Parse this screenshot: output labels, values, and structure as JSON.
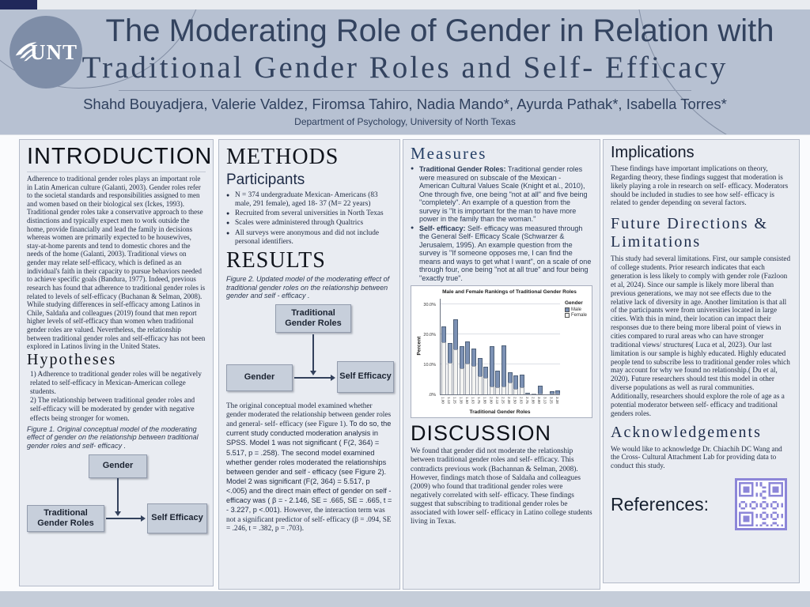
{
  "header": {
    "logo_text": "UNT",
    "title_line1": "The Moderating Role of Gender in Relation with",
    "title_line2": "Traditional Gender Roles and Self- Efficacy",
    "authors": "Shahd Bouyadjera, Valerie Valdez, Firomsa Tahiro, Nadia Mando*, Ayurda Pathak*, Isabella Torres*",
    "affiliation": "Department of Psychology, University of North Texas"
  },
  "introduction": {
    "heading": "INTRODUCTION",
    "body": "Adherence to traditional gender roles plays an important role in Latin American culture (Galanti, 2003). Gender roles refer to the societal standards and responsibilities assigned to men and women based on their biological sex (Ickes, 1993). Traditional gender roles take a conservative approach to these distinctions and typically expect men to work outside the home, provide financially and lead the family in decisions whereas women are primarily expected to be housewives, stay-at-home parents and tend to domestic chores and the needs of the home (Galanti, 2003). Traditional views on gender may relate self-efficacy, which is defined as an individual's faith in their capacity to pursue behaviors needed to achieve specific goals (Bandura, 1977). Indeed, previous research has found that adherence to traditional gender roles is related to levels of self-efficacy (Buchanan & Selman, 2008). While studying differences in self-efficacy among Latinos in Chile, Saldaña and colleagues (2019) found that men report higher levels of self-efficacy than women when traditional gender roles are valued. Nevertheless, the relationship between traditional gender roles and self-efficacy has not been explored in Latinos living in the United States.",
    "hypotheses_heading": "Hypotheses",
    "hypotheses": [
      "1) Adherence to traditional gender roles will be negatively related to self-efficacy in Mexican-American college students.",
      "2) The relationship between traditional gender roles and self-efficacy will be moderated by gender with negative effects being stronger for women."
    ],
    "figure1_caption": "Figure 1. Original conceptual model of the moderating effect of gender on the relationship between traditional gender roles and self- efficacy .",
    "fig1": {
      "top": "Gender",
      "left": "Traditional Gender Roles",
      "right": "Self Efficacy"
    }
  },
  "methods": {
    "heading": "METHODS",
    "participants_heading": "Participants",
    "bullets": [
      "N = 374 undergraduate Mexican- Americans (83 male, 291 female), aged 18- 37 (M= 22 years)",
      "Recruited from several universities in North Texas",
      "Scales were administered through Qualtrics",
      "All surveys were anonymous and did not include personal identifiers."
    ]
  },
  "results": {
    "heading": "RESULTS",
    "figure2_caption": "Figure 2. Updated model of the moderating effect of traditional gender roles on the relationship between gender and self - efficacy .",
    "fig2": {
      "top": "Traditional Gender Roles",
      "left": "Gender",
      "right": "Self Efficacy"
    },
    "p1": "The original conceptual model examined whether gender moderated the relationship between gender roles and general- self- efficacy (see Figure 1). ",
    "p2": "To do so, the current study conducted moderation analysis in SPSS. Model 1 was not significant ( F(2, 364) = 5.517, p = .258). The second model examined whether gender roles moderated the relationships between gender and self - efficacy (see Figure 2). Model 2 was significant (F(2, 364) = 5.517,  p <.005) and the direct main effect of gender on self - efficacy was ( β = - 2.146, SE = .665, SE = .665, t = - 3.227, p <.001). ",
    "p3": "However, the interaction term was not a significant predictor of self- efficacy (β = .094, SE = .246, t = .382, p = .703)."
  },
  "measures": {
    "heading": "Measures",
    "items": [
      {
        "lead": "Traditional Gender Roles:",
        "text": "  Traditional gender roles were measured on subscale of the Mexican - American Cultural Values Scale (Knight et al., 2010),  One through five, one being \"not at all\" and five being \"completely\". An example of a question from the survey is \"It is important for the man to have more power in the family than the woman.\""
      },
      {
        "lead": "Self- efficacy:",
        "text": "  Self- efficacy was measured through the General Self- Efficacy Scale (Schwarzer & Jerusalem, 1995). An example question from the survey is \"If someone opposes me, I can find the means and ways to get what I want\", on a scale of one through four, one being \"not at all true\" and four being \"exactly true\"."
      }
    ]
  },
  "chart_data": {
    "type": "bar",
    "stacked": true,
    "title": "Male and Female Rankings of Traditional Gender Roles",
    "xlabel": "Traditional Gender Roles",
    "ylabel": "Percent",
    "legend_title": "Gender",
    "legend_position": "right",
    "grid": true,
    "ylim": [
      0,
      32
    ],
    "yticks": [
      {
        "label": ".0%",
        "value": 0
      },
      {
        "label": "10.0%",
        "value": 10
      },
      {
        "label": "20.0%",
        "value": 20
      },
      {
        "label": "30.0%",
        "value": 30
      }
    ],
    "categories": [
      "1.00",
      "1.13",
      "1.25",
      "1.38",
      "1.50",
      "1.63",
      "1.75",
      "1.88",
      "2.00",
      "2.13",
      "2.25",
      "2.38",
      "2.50",
      "2.63",
      "2.75",
      "2.88",
      "3.00",
      "3.13",
      "3.25",
      "3.38"
    ],
    "series": [
      {
        "name": "Female",
        "color": "#f3f3f1",
        "values": [
          17.5,
          10.5,
          15.0,
          8.7,
          10.2,
          9.4,
          6.0,
          5.6,
          2.8,
          2.4,
          2.6,
          4.0,
          1.8,
          2.3,
          0.1,
          0.3,
          0.4,
          0.0,
          0.4,
          0.3
        ]
      },
      {
        "name": "Male",
        "color": "#7c91b4",
        "values": [
          5.0,
          6.5,
          10.0,
          7.3,
          7.5,
          5.8,
          6.0,
          3.7,
          13.2,
          5.6,
          13.7,
          3.5,
          4.5,
          4.2,
          0.3,
          0.0,
          2.6,
          0.0,
          0.6,
          1.2
        ]
      }
    ]
  },
  "discussion": {
    "heading": "DISCUSSION",
    "body": "We found that gender did not moderate the relationship between traditional gender roles and self- efficacy. This contradicts previous work (Bachannan & Selman, 2008).  However, findings match those of Saldaña and colleagues (2009) who found that traditional gender roles were negatively correlated with self- efficacy. These findings suggest that subscribing to traditional gender roles be associated with lower self- efficacy in Latino college students living in Texas."
  },
  "implications": {
    "heading": "Implications",
    "body": "These findings have important implications on theory, Regarding theory, these findings suggest that moderation is likely playing a role in research on self- efficacy. Moderators should be included in studies to see how  self- efficacy is related to gender depending on several factors."
  },
  "future": {
    "heading": "Future Directions & Limitations",
    "body": "This study had several limitations. First, our sample consisted of college students. Prior research indicates that each generation is less likely to comply with gender role (Fazloon et al, 2024). Since our sample is likely more liberal than previous generations, we may not see effects due to the relative lack of diversity in age. Another limitation is that all of the participants were from universities located in large cities. With this in mind, their location can impact their responses due to there being more liberal point of views in cities compared to rural areas who can have stronger traditional views/ structures( Luca et al,  2023). Our last limitation is our sample is highly educated. Highly educated people tend to subscribe less to traditional gender roles which may account for why we found no relationship.( Du et al, 2020). Future researchers should test this model in other diverse populations as well as rural communities. Additionally, researchers should explore the role of age as a potential moderator between self- efficacy and traditional genders roles."
  },
  "acknowledgements": {
    "heading": "Acknowledgements",
    "body": "We would like to acknowledge Dr. Chiachih DC Wang and the Cross- Cultural Attachment Lab for providing data to conduct this study."
  },
  "references": {
    "label": "References:"
  },
  "colors": {
    "header_band": "#b7c1d2",
    "accent_navy": "#20285a",
    "male_bar": "#7c91b4",
    "female_bar": "#f3f3f1",
    "qr_purple": "#8c86d8"
  }
}
